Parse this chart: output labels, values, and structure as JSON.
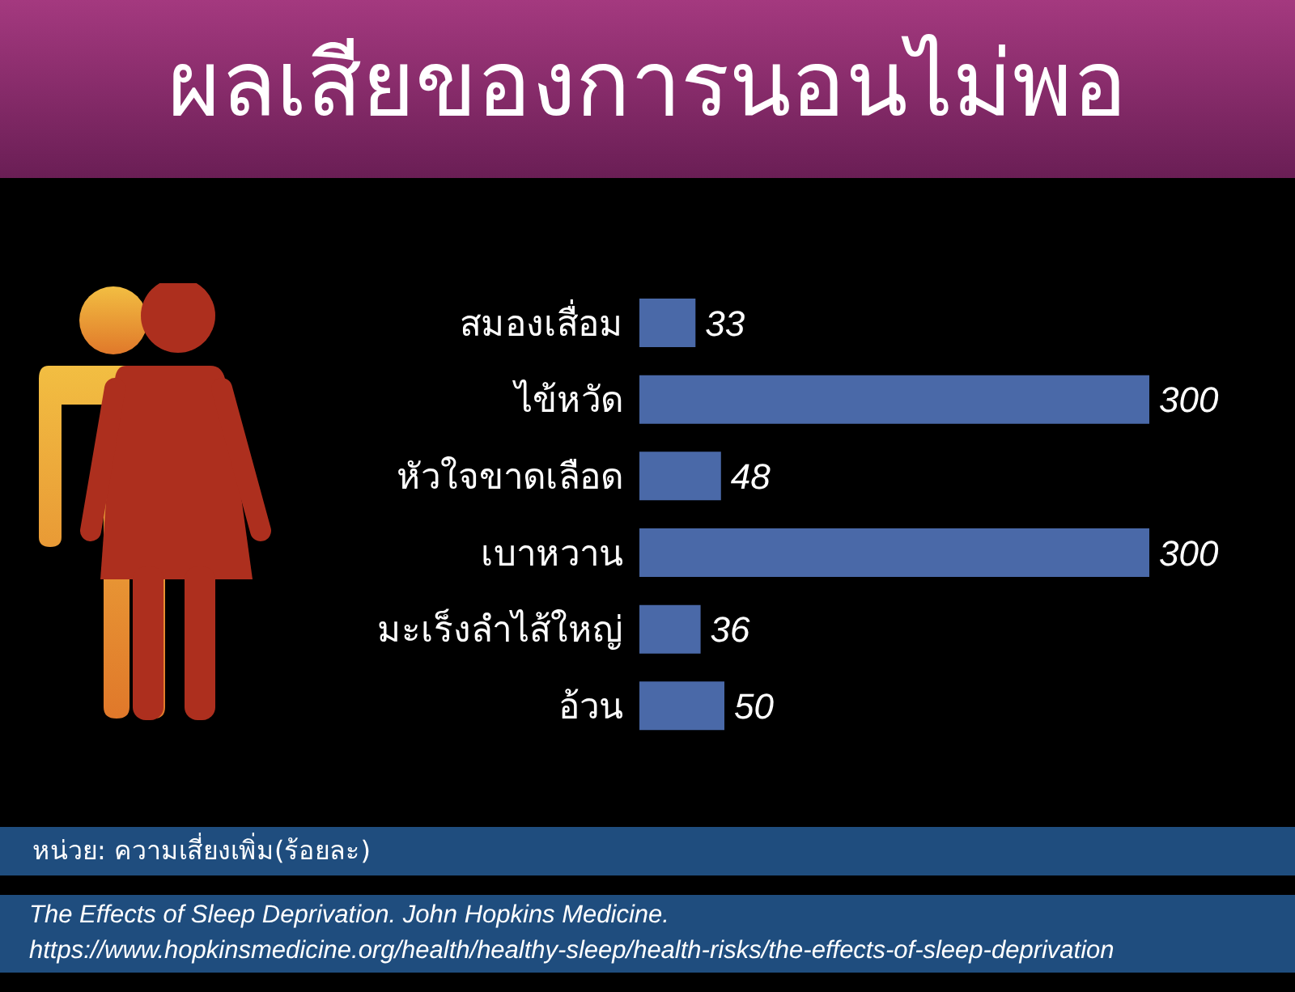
{
  "chart_data": {
    "type": "bar",
    "orientation": "horizontal",
    "title": "ผลเสียของการนอนไม่พอ",
    "categories": [
      "สมองเสื่อม",
      "ไข้หวัด",
      "หัวใจขาดเลือด",
      "เบาหวาน",
      "มะเร็งลำไส้ใหญ่",
      "อ้วน"
    ],
    "values": [
      33,
      300,
      48,
      300,
      36,
      50
    ],
    "color": "#4a69a8",
    "data_labels": true,
    "annotations": [
      "หน่วย: ความเสี่ยงเพิ่ม(ร้อยละ)",
      "The Effects of Sleep Deprivation. John Hopkins Medicine.",
      "https://www.hopkinsmedicine.org/health/healthy-sleep/health-risks/the-effects-of-sleep-deprivation"
    ]
  }
}
